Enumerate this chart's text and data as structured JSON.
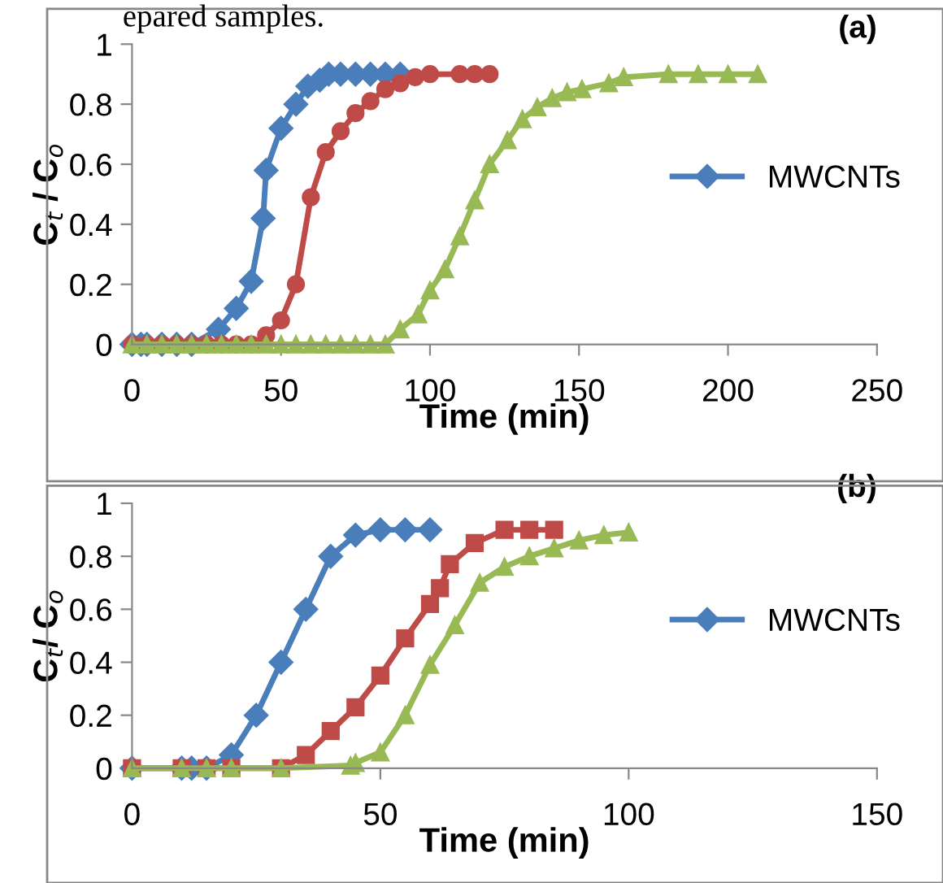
{
  "chart_data": [
    {
      "type": "line",
      "title": "(a)",
      "xlabel": "Time (min)",
      "ylabel": "C$_{t}$ / C$_{o}$",
      "annotations": [
        "epared samples."
      ],
      "xlim": [
        0,
        250
      ],
      "xticks": [
        0,
        50,
        100,
        150,
        200,
        250
      ],
      "ylim": [
        0,
        1
      ],
      "yticks": [
        0,
        0.2,
        0.4,
        0.6,
        0.8,
        1
      ],
      "grid": false,
      "legend": "right",
      "series": [
        {
          "name": "MWCNTs",
          "color": "#4a7ebb",
          "marker": "diamond",
          "x": [
            0,
            3,
            5,
            10,
            15,
            20,
            29,
            35,
            40,
            44,
            45,
            50,
            55,
            59,
            63,
            66,
            70,
            75,
            80,
            85,
            90
          ],
          "values": [
            0,
            0,
            0,
            0,
            0,
            0,
            0.05,
            0.12,
            0.21,
            0.42,
            0.58,
            0.72,
            0.8,
            0.86,
            0.88,
            0.9,
            0.9,
            0.9,
            0.9,
            0.9,
            0.9
          ]
        },
        {
          "color": "#be4b48",
          "marker": "circle",
          "x": [
            0,
            5,
            10,
            15,
            20,
            25,
            30,
            35,
            40,
            45,
            50,
            55,
            60,
            65,
            70,
            75,
            80,
            85,
            90,
            95,
            100,
            110,
            115,
            120
          ],
          "values": [
            0,
            0,
            0,
            0,
            0,
            0,
            0,
            0,
            0,
            0.03,
            0.08,
            0.2,
            0.49,
            0.64,
            0.71,
            0.77,
            0.81,
            0.85,
            0.87,
            0.89,
            0.9,
            0.9,
            0.9,
            0.9
          ]
        },
        {
          "color": "#98b954",
          "marker": "triangle",
          "x": [
            0,
            5,
            10,
            15,
            20,
            25,
            30,
            35,
            40,
            45,
            50,
            55,
            60,
            65,
            70,
            75,
            80,
            85,
            90,
            96,
            100,
            105,
            110,
            115,
            120,
            126,
            131,
            136,
            141,
            146,
            151,
            160,
            165,
            180,
            190,
            200,
            210
          ],
          "values": [
            0,
            0,
            0,
            0,
            0,
            0,
            0,
            0,
            0,
            0,
            0,
            0,
            0,
            0,
            0,
            0,
            0,
            0,
            0.05,
            0.1,
            0.18,
            0.25,
            0.36,
            0.48,
            0.6,
            0.68,
            0.75,
            0.79,
            0.82,
            0.84,
            0.85,
            0.87,
            0.89,
            0.9,
            0.9,
            0.9,
            0.9
          ]
        }
      ]
    },
    {
      "type": "line",
      "title": "(b)",
      "xlabel": "Time (min)",
      "ylabel": "C$_{t}$/ C$_{o}$",
      "xlim": [
        0,
        150
      ],
      "xticks": [
        0,
        50,
        100,
        150
      ],
      "ylim": [
        0,
        1
      ],
      "yticks": [
        0,
        0.2,
        0.4,
        0.6,
        0.8,
        1
      ],
      "grid": false,
      "legend": "right",
      "series": [
        {
          "name": "MWCNTs",
          "color": "#4a7ebb",
          "marker": "diamond",
          "x": [
            0,
            10,
            12,
            15,
            20,
            25,
            30,
            35,
            40,
            45,
            50,
            55,
            60
          ],
          "values": [
            0,
            0,
            0,
            0,
            0.05,
            0.2,
            0.4,
            0.6,
            0.8,
            0.88,
            0.9,
            0.9,
            0.9
          ]
        },
        {
          "color": "#be4b48",
          "marker": "square",
          "x": [
            0,
            10,
            15,
            20,
            30,
            35,
            40,
            45,
            50,
            55,
            60,
            62,
            64,
            69,
            75,
            80,
            85
          ],
          "values": [
            0,
            0,
            0,
            0,
            0,
            0.05,
            0.14,
            0.23,
            0.35,
            0.49,
            0.62,
            0.68,
            0.77,
            0.85,
            0.9,
            0.9,
            0.9
          ]
        },
        {
          "color": "#98b954",
          "marker": "triangle",
          "x": [
            0,
            10,
            15,
            20,
            30,
            44,
            45,
            50,
            55,
            60,
            65,
            70,
            75,
            80,
            85,
            90,
            95,
            100
          ],
          "values": [
            0,
            0,
            0,
            0,
            0,
            0.01,
            0.02,
            0.06,
            0.2,
            0.39,
            0.54,
            0.7,
            0.76,
            0.8,
            0.83,
            0.86,
            0.88,
            0.89
          ]
        }
      ]
    }
  ]
}
